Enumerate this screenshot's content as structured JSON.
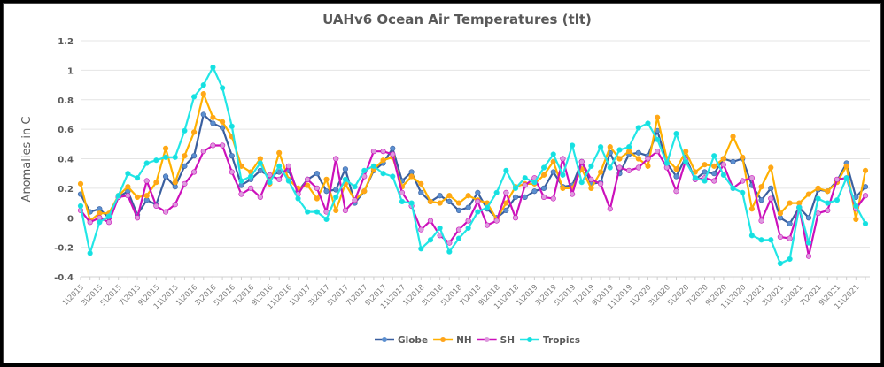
{
  "chart_data": {
    "type": "line",
    "title": "UAHv6 Ocean Air Temperatures (tlt)",
    "xlabel": "",
    "ylabel": "Anomalies in C",
    "ylim": [
      -0.4,
      1.2
    ],
    "yticks": [
      "1.2",
      "1",
      "0.8",
      "0.6",
      "0.4",
      "0.2",
      "0",
      "-0.2",
      "-0.4"
    ],
    "grid": true,
    "legend_position": "bottom",
    "x": [
      "1\\2015",
      "2\\2015",
      "3\\2015",
      "4\\2015",
      "5\\2015",
      "6\\2015",
      "7\\2015",
      "8\\2015",
      "9\\2015",
      "10\\2015",
      "11\\2015",
      "12\\2015",
      "1\\2016",
      "2\\2016",
      "3\\2016",
      "4\\2016",
      "5\\2016",
      "6\\2016",
      "7\\2016",
      "8\\2016",
      "9\\2016",
      "10\\2016",
      "11\\2016",
      "12\\2016",
      "1\\2017",
      "2\\2017",
      "3\\2017",
      "4\\2017",
      "5\\2017",
      "6\\2017",
      "7\\2017",
      "8\\2017",
      "9\\2017",
      "10\\2017",
      "11\\2017",
      "12\\2017",
      "1\\2018",
      "2\\2018",
      "3\\2018",
      "4\\2018",
      "5\\2018",
      "6\\2018",
      "7\\2018",
      "8\\2018",
      "9\\2018",
      "10\\2018",
      "11\\2018",
      "12\\2018",
      "1\\2019",
      "2\\2019",
      "3\\2019",
      "4\\2019",
      "5\\2019",
      "6\\2019",
      "7\\2019",
      "8\\2019",
      "9\\2019",
      "10\\2019",
      "11\\2019",
      "12\\2019",
      "1\\2020",
      "2\\2020",
      "3\\2020",
      "4\\2020",
      "5\\2020",
      "6\\2020",
      "7\\2020",
      "8\\2020",
      "9\\2020",
      "10\\2020",
      "11\\2020",
      "12\\2020",
      "1\\2021",
      "2\\2021",
      "3\\2021",
      "4\\2021",
      "5\\2021",
      "6\\2021",
      "7\\2021",
      "8\\2021",
      "9\\2021",
      "10\\2021",
      "11\\2021",
      "12\\2021"
    ],
    "xtick_labels": [
      "1\\2015",
      "3\\2015",
      "5\\2015",
      "7\\2015",
      "9\\2015",
      "11\\2015",
      "1\\2016",
      "3\\2016",
      "5\\2016",
      "7\\2016",
      "9\\2016",
      "11\\2016",
      "1\\2017",
      "3\\2017",
      "5\\2017",
      "7\\2017",
      "9\\2017",
      "11\\2017",
      "1\\2018",
      "3\\2018",
      "5\\2018",
      "7\\2018",
      "9\\2018",
      "11\\2018",
      "1\\2019",
      "3\\2019",
      "5\\2019",
      "7\\2019",
      "9\\2019",
      "11\\2019",
      "1\\2020",
      "3\\2020",
      "5\\2020",
      "7\\2020",
      "9\\2020",
      "11\\2020",
      "1\\2021",
      "3\\2021",
      "5\\2021",
      "7\\2021",
      "9\\2021",
      "11\\2021"
    ],
    "series": [
      {
        "name": "Globe",
        "color": "#3a5f9f",
        "marker": "#5b8fd0",
        "values": [
          0.16,
          0.04,
          0.06,
          0.0,
          0.14,
          0.18,
          0.02,
          0.12,
          0.09,
          0.28,
          0.21,
          0.35,
          0.42,
          0.7,
          0.64,
          0.61,
          0.42,
          0.22,
          0.26,
          0.32,
          0.28,
          0.31,
          0.32,
          0.18,
          0.26,
          0.3,
          0.18,
          0.19,
          0.33,
          0.1,
          0.18,
          0.32,
          0.37,
          0.47,
          0.25,
          0.31,
          0.17,
          0.11,
          0.15,
          0.11,
          0.05,
          0.07,
          0.17,
          0.06,
          0.0,
          0.05,
          0.14,
          0.14,
          0.18,
          0.2,
          0.31,
          0.21,
          0.22,
          0.38,
          0.23,
          0.24,
          0.44,
          0.3,
          0.43,
          0.44,
          0.42,
          0.59,
          0.37,
          0.28,
          0.41,
          0.26,
          0.31,
          0.3,
          0.4,
          0.38,
          0.4,
          0.22,
          0.12,
          0.2,
          0.0,
          -0.04,
          0.07,
          0.0,
          0.19,
          0.18,
          0.25,
          0.37,
          0.14,
          0.21
        ]
      },
      {
        "name": "NH",
        "color": "#ffb000",
        "marker": "#ffa41c",
        "values": [
          0.23,
          -0.02,
          0.03,
          0.03,
          0.15,
          0.21,
          0.14,
          0.15,
          0.24,
          0.47,
          0.24,
          0.42,
          0.58,
          0.84,
          0.68,
          0.65,
          0.55,
          0.35,
          0.31,
          0.4,
          0.23,
          0.44,
          0.26,
          0.2,
          0.22,
          0.13,
          0.26,
          0.05,
          0.23,
          0.12,
          0.18,
          0.33,
          0.39,
          0.41,
          0.21,
          0.28,
          0.23,
          0.11,
          0.1,
          0.15,
          0.1,
          0.15,
          0.12,
          0.1,
          -0.01,
          0.1,
          0.21,
          0.23,
          0.23,
          0.29,
          0.38,
          0.2,
          0.2,
          0.33,
          0.2,
          0.31,
          0.48,
          0.4,
          0.45,
          0.4,
          0.35,
          0.68,
          0.4,
          0.33,
          0.45,
          0.31,
          0.36,
          0.35,
          0.4,
          0.55,
          0.41,
          0.06,
          0.21,
          0.34,
          0.03,
          0.1,
          0.1,
          0.16,
          0.2,
          0.18,
          0.24,
          0.35,
          -0.01,
          0.32
        ]
      },
      {
        "name": "SH",
        "color": "#cc11bb",
        "marker": "#dd99dd",
        "values": [
          0.05,
          -0.03,
          0.0,
          -0.03,
          0.14,
          0.15,
          0.0,
          0.25,
          0.08,
          0.04,
          0.09,
          0.23,
          0.31,
          0.45,
          0.49,
          0.49,
          0.31,
          0.16,
          0.2,
          0.14,
          0.29,
          0.26,
          0.35,
          0.16,
          0.26,
          0.2,
          0.04,
          0.4,
          0.05,
          0.12,
          0.28,
          0.45,
          0.45,
          0.43,
          0.17,
          0.08,
          -0.08,
          -0.02,
          -0.12,
          -0.17,
          -0.08,
          -0.02,
          0.11,
          -0.05,
          -0.02,
          0.17,
          0.0,
          0.22,
          0.27,
          0.14,
          0.13,
          0.4,
          0.16,
          0.38,
          0.26,
          0.23,
          0.06,
          0.34,
          0.32,
          0.34,
          0.4,
          0.45,
          0.34,
          0.18,
          0.39,
          0.26,
          0.27,
          0.25,
          0.36,
          0.2,
          0.25,
          0.27,
          -0.02,
          0.13,
          -0.13,
          -0.14,
          0.07,
          -0.26,
          0.03,
          0.05,
          0.26,
          0.27,
          0.06,
          0.15
        ]
      },
      {
        "name": "Tropics",
        "color": "#22e6e6",
        "marker": "#16dfe0",
        "values": [
          0.08,
          -0.24,
          -0.03,
          0.01,
          0.15,
          0.3,
          0.27,
          0.37,
          0.39,
          0.41,
          0.41,
          0.59,
          0.82,
          0.9,
          1.02,
          0.88,
          0.62,
          0.25,
          0.28,
          0.37,
          0.24,
          0.35,
          0.25,
          0.13,
          0.04,
          0.04,
          -0.01,
          0.14,
          0.26,
          0.21,
          0.32,
          0.35,
          0.3,
          0.28,
          0.11,
          0.1,
          -0.21,
          -0.15,
          -0.07,
          -0.23,
          -0.14,
          -0.07,
          0.04,
          0.07,
          0.17,
          0.32,
          0.2,
          0.27,
          0.24,
          0.34,
          0.43,
          0.29,
          0.49,
          0.24,
          0.35,
          0.48,
          0.34,
          0.46,
          0.48,
          0.61,
          0.64,
          0.53,
          0.37,
          0.57,
          0.38,
          0.27,
          0.25,
          0.42,
          0.29,
          0.2,
          0.17,
          -0.12,
          -0.15,
          -0.15,
          -0.31,
          -0.28,
          0.07,
          -0.17,
          0.13,
          0.1,
          0.12,
          0.27,
          0.08,
          -0.04
        ]
      }
    ]
  }
}
